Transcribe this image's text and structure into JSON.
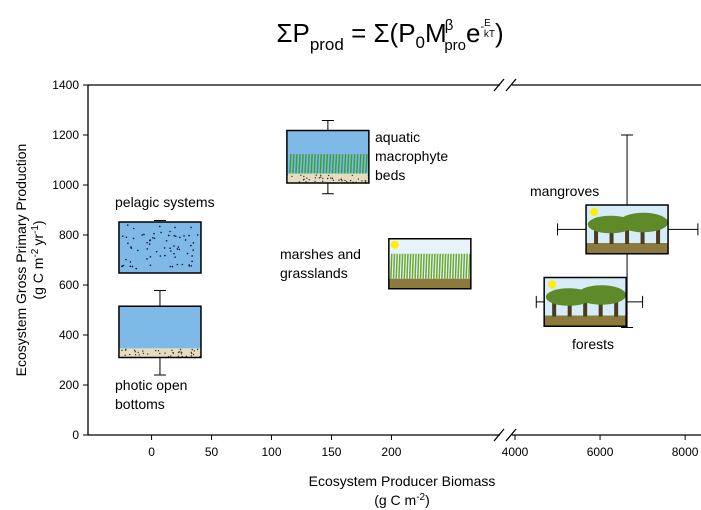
{
  "chart_data": {
    "type": "box",
    "title_parts": [
      "ΣP",
      "prod",
      " = Σ(P",
      "0",
      "M",
      "β",
      "pro",
      "e",
      "-",
      "E",
      "kT",
      ")"
    ],
    "ylabel_parts": [
      "Ecosystem Gross Primary Production",
      "(g C m",
      "-2",
      "yr",
      "-1",
      ")"
    ],
    "xlabel_parts": [
      "Ecosystem Producer Biomass",
      "(g C m",
      "-2",
      ")"
    ],
    "ylim": [
      0,
      1400
    ],
    "yticks": [
      0,
      200,
      400,
      600,
      800,
      1000,
      1200,
      1400
    ],
    "xlim": [
      -53,
      288
    ],
    "xticks": [
      0,
      50,
      100,
      150,
      200
    ],
    "xlim_right": [
      4000,
      8350
    ],
    "xticks_right": [
      4000,
      6000,
      8000
    ],
    "items": [
      {
        "label": [
          "pelagic systems"
        ],
        "x": 7,
        "box": [
          648,
          852
        ],
        "whisker": [
          null,
          858
        ],
        "xerr": null
      },
      {
        "label": [
          "photic open",
          "bottoms"
        ],
        "x": 7,
        "box": [
          310,
          515
        ],
        "whisker": [
          240,
          578
        ],
        "xerr": null
      },
      {
        "label": [
          "aquatic",
          "macrophyte",
          "beds"
        ],
        "x": 147,
        "box": [
          1008,
          1218
        ],
        "whisker": [
          965,
          1258
        ],
        "xerr": null
      },
      {
        "label": [
          "marshes and",
          "grasslands"
        ],
        "x": 232,
        "box": [
          585,
          785
        ],
        "whisker": null,
        "xerr": null
      },
      {
        "label": [
          "mangroves"
        ],
        "x": 6635,
        "box": [
          725,
          920
        ],
        "whisker": [
          430,
          1200
        ],
        "xerr": [
          5000,
          8300
        ]
      },
      {
        "label": [
          "forests"
        ],
        "x": 5650,
        "box": [
          435,
          630
        ],
        "whisker": null,
        "xerr": [
          4500,
          7000
        ]
      }
    ]
  }
}
